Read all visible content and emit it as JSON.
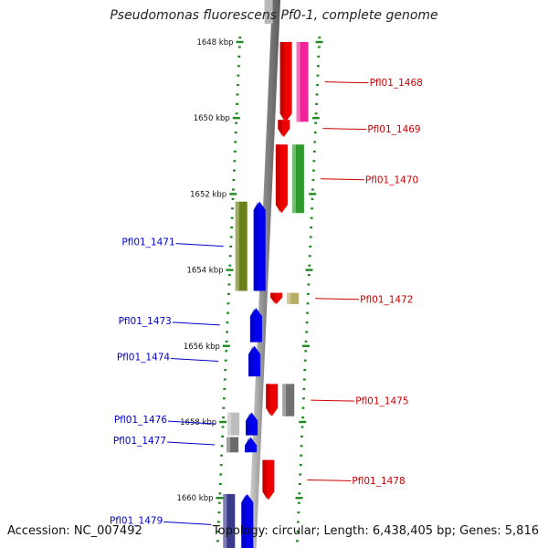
{
  "title": "Pseudomonas fluorescens Pf0-1, complete genome",
  "footer": {
    "accession": "Accession: NC_007492",
    "summary": "Topology: circular; Length: 6,438,405 bp; Genes: 5,816"
  },
  "colors": {
    "ring": "#8a8a8a",
    "ticks": "#1e8a1e",
    "forward_label": "#cc0000",
    "reverse_label": "#0000cc"
  },
  "scale": {
    "unit": "kbp",
    "ticks": [
      {
        "label": "1648 kbp",
        "kbp": 1648
      },
      {
        "label": "1650 kbp",
        "kbp": 1650
      },
      {
        "label": "1652 kbp",
        "kbp": 1652
      },
      {
        "label": "1654 kbp",
        "kbp": 1654
      },
      {
        "label": "1656 kbp",
        "kbp": 1656
      },
      {
        "label": "1658 kbp",
        "kbp": 1658
      },
      {
        "label": "1660 kbp",
        "kbp": 1660
      }
    ]
  },
  "genes": [
    {
      "label": "Pfl01_1468",
      "strand": "forward",
      "start_kbp": 1648.0,
      "end_kbp": 1650.1,
      "color": "#ee0000",
      "shade": "#f2229a"
    },
    {
      "label": "Pfl01_1469",
      "strand": "forward",
      "start_kbp": 1650.05,
      "end_kbp": 1650.5,
      "color": "#ee0000",
      "shade": "#ffffff"
    },
    {
      "label": "Pfl01_1470",
      "strand": "forward",
      "start_kbp": 1650.7,
      "end_kbp": 1652.5,
      "color": "#ee0000",
      "shade": "#2e9a2e"
    },
    {
      "label": "Pfl01_1471",
      "strand": "reverse",
      "start_kbp": 1652.2,
      "end_kbp": 1654.55,
      "color": "#0000ee",
      "shade": "#6b7f1a"
    },
    {
      "label": "Pfl01_1472",
      "strand": "forward",
      "start_kbp": 1654.6,
      "end_kbp": 1654.9,
      "color": "#ee0000",
      "shade": "#b8ad6a"
    },
    {
      "label": "Pfl01_1473",
      "strand": "reverse",
      "start_kbp": 1655.0,
      "end_kbp": 1655.9,
      "color": "#0000ee",
      "shade": "#ffffff"
    },
    {
      "label": "Pfl01_1474",
      "strand": "reverse",
      "start_kbp": 1656.0,
      "end_kbp": 1656.8,
      "color": "#0000ee",
      "shade": "#ffffff"
    },
    {
      "label": "Pfl01_1475",
      "strand": "forward",
      "start_kbp": 1657.0,
      "end_kbp": 1657.85,
      "color": "#ee0000",
      "shade": "#707070"
    },
    {
      "label": "Pfl01_1476",
      "strand": "reverse",
      "start_kbp": 1657.75,
      "end_kbp": 1658.35,
      "color": "#0000ee",
      "shade": "#bcbcbc"
    },
    {
      "label": "Pfl01_1477",
      "strand": "reverse",
      "start_kbp": 1658.4,
      "end_kbp": 1658.8,
      "color": "#0000ee",
      "shade": "#6a6a6a"
    },
    {
      "label": "Pfl01_1478",
      "strand": "forward",
      "start_kbp": 1659.0,
      "end_kbp": 1660.05,
      "color": "#ee0000",
      "shade": "#ffffff"
    },
    {
      "label": "Pfl01_1479",
      "strand": "reverse",
      "start_kbp": 1659.9,
      "end_kbp": 1661.5,
      "color": "#0000ee",
      "shade": "#3a3a8a"
    }
  ]
}
